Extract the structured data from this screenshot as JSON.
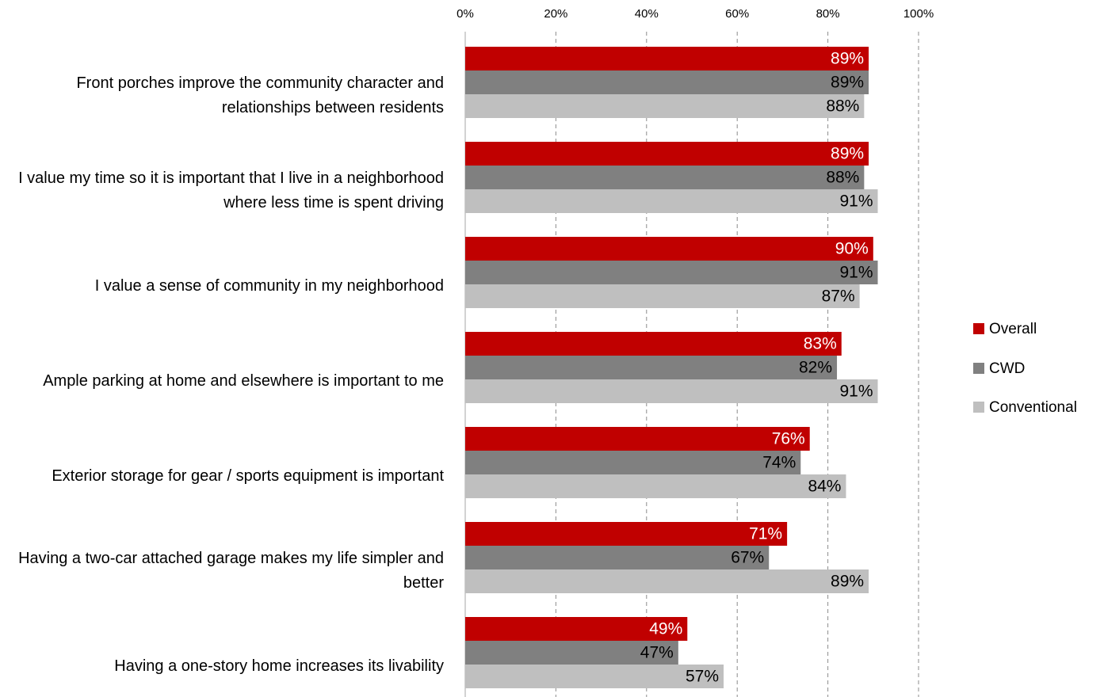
{
  "chart_data": {
    "type": "bar",
    "orientation": "horizontal",
    "categories": [
      "Front porches improve the community character and relationships between residents",
      "I value my time so it is important that I live in a neighborhood where less time is spent driving",
      "I value a sense of community in my neighborhood",
      "Ample parking at home and elsewhere is important to me",
      "Exterior storage for gear / sports equipment is important",
      "Having a two-car attached garage makes my life simpler and better",
      "Having a one-story home increases its livability"
    ],
    "series": [
      {
        "name": "Overall",
        "color": "#c00000",
        "label_color": "#ffffff",
        "values": [
          89,
          89,
          90,
          83,
          76,
          71,
          49
        ],
        "value_labels": [
          "89%",
          "89%",
          "90%",
          "83%",
          "76%",
          "71%",
          "49%"
        ]
      },
      {
        "name": "CWD",
        "color": "#808080",
        "label_color": "#000000",
        "values": [
          89,
          88,
          91,
          82,
          74,
          67,
          47
        ],
        "value_labels": [
          "89%",
          "88%",
          "91%",
          "82%",
          "74%",
          "67%",
          "47%"
        ]
      },
      {
        "name": "Conventional",
        "color": "#bfbfbf",
        "label_color": "#000000",
        "values": [
          88,
          91,
          87,
          91,
          84,
          89,
          57
        ],
        "value_labels": [
          "88%",
          "91%",
          "87%",
          "91%",
          "84%",
          "89%",
          "57%"
        ]
      }
    ],
    "xlim": [
      0,
      100
    ],
    "xticks": [
      {
        "value": 0,
        "label": "0%"
      },
      {
        "value": 20,
        "label": "20%"
      },
      {
        "value": 40,
        "label": "40%"
      },
      {
        "value": 60,
        "label": "60%"
      },
      {
        "value": 80,
        "label": "80%"
      },
      {
        "value": 100,
        "label": "100%"
      }
    ],
    "grid": true,
    "legend": "right"
  }
}
